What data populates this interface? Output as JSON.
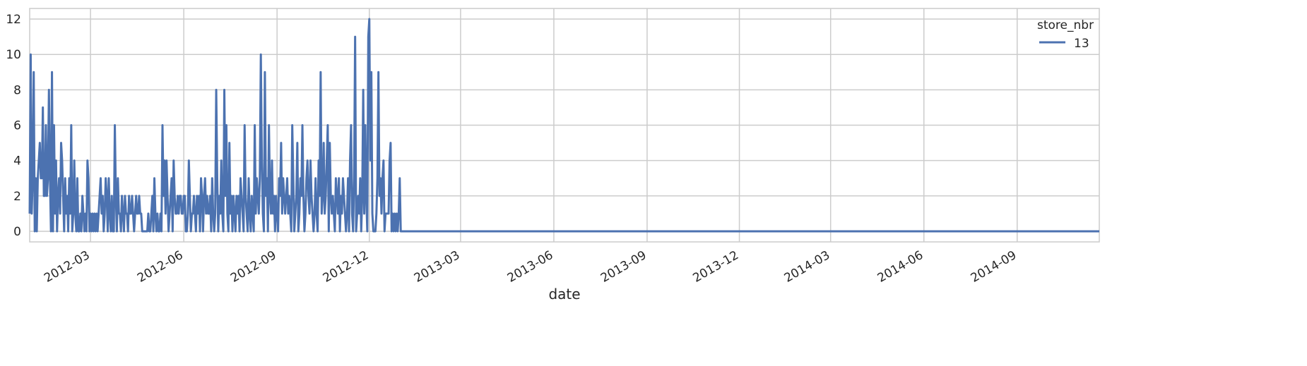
{
  "chart_data": {
    "type": "line",
    "title": "",
    "xlabel": "date",
    "ylabel": "",
    "x_range": [
      "2012-01-01",
      "2014-11-21"
    ],
    "ylim": [
      -0.6,
      12.6
    ],
    "y_ticks": [
      0,
      2,
      4,
      6,
      8,
      10,
      12
    ],
    "x_ticks": [
      {
        "date": "2012-03-01",
        "label": "2012-03"
      },
      {
        "date": "2012-06-01",
        "label": "2012-06"
      },
      {
        "date": "2012-09-01",
        "label": "2012-09"
      },
      {
        "date": "2012-12-01",
        "label": "2012-12"
      },
      {
        "date": "2013-03-01",
        "label": "2013-03"
      },
      {
        "date": "2013-06-01",
        "label": "2013-06"
      },
      {
        "date": "2013-09-01",
        "label": "2013-09"
      },
      {
        "date": "2013-12-01",
        "label": "2013-12"
      },
      {
        "date": "2014-03-01",
        "label": "2014-03"
      },
      {
        "date": "2014-06-01",
        "label": "2014-06"
      },
      {
        "date": "2014-09-01",
        "label": "2014-09"
      }
    ],
    "grid": true,
    "legend": {
      "title": "store_nbr",
      "position": "top-right"
    },
    "series": [
      {
        "name": "13",
        "color": "#4c72b0",
        "start_date": "2012-01-01",
        "values_daily": [
          1,
          10,
          1,
          3,
          9,
          0,
          3,
          0,
          3,
          4,
          5,
          3,
          3,
          7,
          2,
          2,
          6,
          2,
          3,
          8,
          3,
          0,
          9,
          0,
          6,
          1,
          4,
          0,
          2,
          3,
          1,
          5,
          4,
          2,
          0,
          3,
          1,
          2,
          0,
          3,
          1,
          6,
          0,
          1,
          4,
          1,
          0,
          3,
          0,
          0,
          1,
          0,
          2,
          1,
          0,
          1,
          0,
          4,
          3,
          0,
          1,
          0,
          1,
          0,
          1,
          0,
          1,
          0,
          1,
          2,
          3,
          1,
          2,
          0,
          1,
          3,
          2,
          0,
          3,
          1,
          0,
          2,
          0,
          0,
          6,
          2,
          0,
          3,
          1,
          1,
          0,
          2,
          1,
          0,
          2,
          1,
          1,
          0,
          2,
          1,
          1,
          2,
          1,
          0,
          1,
          2,
          1,
          1,
          2,
          1,
          1,
          0,
          0,
          0,
          0,
          0,
          0,
          1,
          0,
          0,
          1,
          2,
          0,
          3,
          1,
          0,
          1,
          0,
          0,
          1,
          0,
          6,
          2,
          4,
          1,
          4,
          2,
          0,
          1,
          2,
          3,
          0,
          4,
          2,
          1,
          1,
          2,
          1,
          2,
          2,
          1,
          1,
          2,
          2,
          0,
          0,
          1,
          4,
          2,
          0,
          1,
          1,
          2,
          1,
          0,
          2,
          1,
          2,
          0,
          3,
          2,
          0,
          2,
          3,
          1,
          2,
          1,
          1,
          2,
          0,
          3,
          1,
          0,
          1,
          8,
          3,
          0,
          2,
          1,
          4,
          1,
          0,
          8,
          2,
          6,
          1,
          0,
          5,
          1,
          2,
          0,
          2,
          1,
          0,
          2,
          1,
          2,
          0,
          3,
          2,
          1,
          0,
          6,
          2,
          1,
          0,
          3,
          1,
          0,
          2,
          1,
          0,
          6,
          1,
          3,
          2,
          1,
          3,
          10,
          4,
          1,
          0,
          9,
          2,
          3,
          0,
          6,
          2,
          1,
          4,
          1,
          2,
          0,
          2,
          1,
          0,
          3,
          2,
          5,
          1,
          3,
          2,
          1,
          2,
          3,
          1,
          2,
          1,
          0,
          6,
          3,
          0,
          1,
          2,
          5,
          0,
          1,
          3,
          2,
          6,
          2,
          0,
          1,
          3,
          4,
          2,
          1,
          4,
          2,
          1,
          0,
          1,
          3,
          1,
          0,
          4,
          2,
          9,
          1,
          2,
          5,
          1,
          2,
          4,
          6,
          0,
          5,
          2,
          1,
          2,
          1,
          0,
          3,
          2,
          1,
          3,
          0,
          2,
          1,
          3,
          2,
          1,
          0,
          1,
          3,
          0,
          4,
          6,
          1,
          0,
          3,
          11,
          0,
          1,
          2,
          1,
          3,
          0,
          2,
          8,
          1,
          6,
          2,
          0,
          11,
          12,
          4,
          9,
          1,
          0,
          0,
          0,
          1,
          3,
          9,
          2,
          3,
          1,
          3,
          4,
          0,
          1,
          1,
          1,
          1,
          4,
          5,
          0,
          1,
          0,
          1,
          0,
          1,
          0,
          1,
          3,
          0
        ]
      }
    ],
    "values_after_last_point": 0,
    "end_date": "2014-11-21"
  }
}
